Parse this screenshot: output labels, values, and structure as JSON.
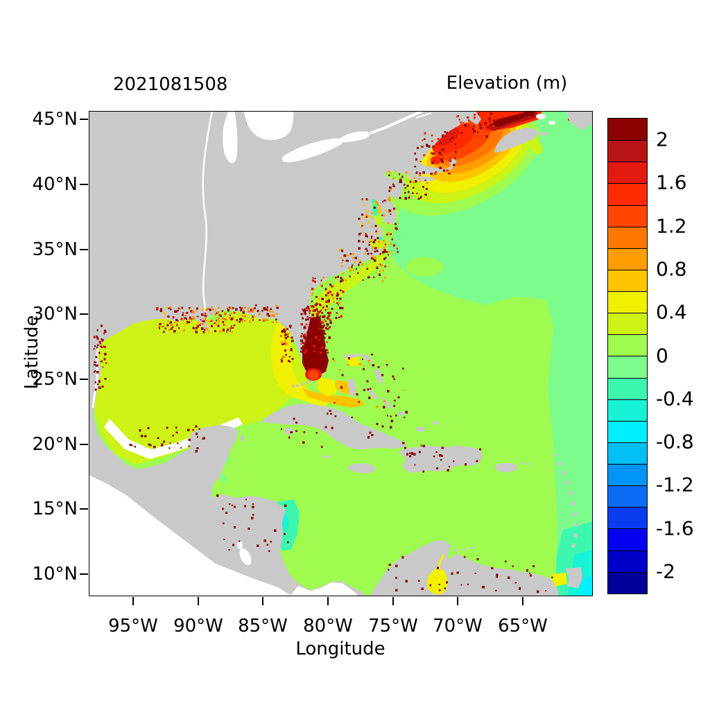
{
  "header": {
    "run_label": "2021081508",
    "title": "Elevation (m)"
  },
  "chart_data": {
    "type": "heatmap",
    "title": "Elevation (m)",
    "subtitle": "2021081508",
    "xlabel": "Longitude",
    "ylabel": "Latitude",
    "x_ticks": [
      "95°W",
      "90°W",
      "85°W",
      "80°W",
      "75°W",
      "70°W",
      "65°W"
    ],
    "y_ticks": [
      "45°N",
      "40°N",
      "35°N",
      "30°N",
      "25°N",
      "20°N",
      "15°N",
      "10°N"
    ],
    "x_range_deg": [
      "98.4°W",
      "59.6°W"
    ],
    "y_range_deg": [
      "8.3°N",
      "45.6°N"
    ],
    "grid": false,
    "legend_position": "right",
    "colorbar": {
      "title": "Elevation (m)",
      "tick_labels": [
        "2",
        "1.6",
        "1.2",
        "0.8",
        "0.4",
        "0",
        "-0.4",
        "-0.8",
        "-1.2",
        "-1.6",
        "-2"
      ],
      "level_min": -2.2,
      "level_max": 2.2,
      "level_step": 0.2,
      "colors_top_to_bottom": [
        "#8B0000",
        "#B81414",
        "#E31A10",
        "#FF2A00",
        "#FF4500",
        "#FF7700",
        "#FF9D00",
        "#FFC400",
        "#F0F000",
        "#CCF216",
        "#9FFB50",
        "#7DFB8C",
        "#3DF7B0",
        "#18F2D7",
        "#00EFFF",
        "#00BFF5",
        "#0095F5",
        "#0A6BF5",
        "#0A3DF0",
        "#0500F0",
        "#0000C8",
        "#00009B"
      ]
    },
    "palette": {
      "land": "#C9C9C9",
      "out_of_domain": "#FFFFFF",
      "border": "#000000"
    },
    "features": [
      {
        "region": "Bay of Fundy / Gulf of Maine (66-70W, 42-45.5N)",
        "elevation_m": "+1.0 to > +2.2",
        "appearance": "red-orange surge maximum, dark red wedge in Bay of Fundy"
      },
      {
        "region": "Southeast Florida coast (80W, 25-28N)",
        "elevation_m": "> +2.0",
        "appearance": "dark red speckled cluster with +1.2 to +1.6 core at its south edge"
      },
      {
        "region": "Gulf of Mexico basin",
        "elevation_m": "+0.2 to +0.4"
      },
      {
        "region": "West Florida shelf and Florida Bay",
        "elevation_m": "+0.4 to +0.6"
      },
      {
        "region": "Bahamas banks and Straits of Florida",
        "elevation_m": "+0.4 to +0.8"
      },
      {
        "region": "Northwest Atlantic north of ~33N and east of ~62W",
        "elevation_m": "-0.2 to 0"
      },
      {
        "region": "Central Atlantic and Caribbean Sea",
        "elevation_m": "0 to +0.2"
      },
      {
        "region": "Chesapeake / Delaware Bay estuaries (75-77W, 37-40N)",
        "elevation_m": "+0.4 to +1.0 patches"
      },
      {
        "region": "Nicaragua coast (83W, 11-15N)",
        "elevation_m": "-0.2 to -0.6"
      },
      {
        "region": "Lake Maracaibo (71.5W, 10N)",
        "elevation_m": "+0.4 to +0.6"
      },
      {
        "region": "Southeast corner near Trinidad (60-62W, 9-11N)",
        "elevation_m": "-0.4 to -0.8"
      },
      {
        "region": "Coastal wet/dry fringe on all coasts",
        "elevation_m": "> +2.0 scattered speckles"
      }
    ]
  }
}
